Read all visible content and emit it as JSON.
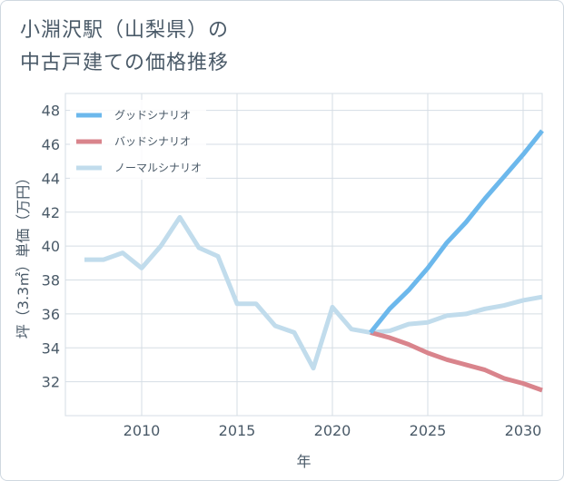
{
  "title": {
    "line1": "小淵沢駅（山梨県）の",
    "line2": "中古戸建ての価格推移"
  },
  "colors": {
    "good": "#6cb8ec",
    "bad": "#d9848c",
    "normal": "#c1dcec",
    "grid": "#d5dde4",
    "axis": "#4a5a68"
  },
  "chart_data": {
    "type": "line",
    "xlabel": "年",
    "ylabel": "坪（3.3㎡）単価（万円）",
    "xlim": [
      2006,
      2031
    ],
    "ylim": [
      30,
      49
    ],
    "xticks": [
      2010,
      2015,
      2020,
      2025,
      2030
    ],
    "yticks": [
      32,
      34,
      36,
      38,
      40,
      42,
      44,
      46,
      48
    ],
    "grid": true,
    "legend_position": "top-left",
    "series": [
      {
        "name": "グッドシナリオ",
        "color": "#6cb8ec",
        "x": [
          2022,
          2023,
          2024,
          2025,
          2026,
          2027,
          2028,
          2029,
          2030,
          2031
        ],
        "y": [
          34.9,
          36.3,
          37.4,
          38.7,
          40.2,
          41.4,
          42.8,
          44.1,
          45.4,
          46.8
        ]
      },
      {
        "name": "バッドシナリオ",
        "color": "#d9848c",
        "x": [
          2022,
          2023,
          2024,
          2025,
          2026,
          2027,
          2028,
          2029,
          2030,
          2031
        ],
        "y": [
          34.9,
          34.6,
          34.2,
          33.7,
          33.3,
          33.0,
          32.7,
          32.2,
          31.9,
          31.5
        ]
      },
      {
        "name": "ノーマルシナリオ",
        "color": "#c1dcec",
        "x": [
          2007,
          2008,
          2009,
          2010,
          2011,
          2012,
          2013,
          2014,
          2015,
          2016,
          2017,
          2018,
          2019,
          2020,
          2021,
          2022,
          2023,
          2024,
          2025,
          2026,
          2027,
          2028,
          2029,
          2030,
          2031
        ],
        "y": [
          39.2,
          39.2,
          39.6,
          38.7,
          40.0,
          41.7,
          39.9,
          39.4,
          36.6,
          36.6,
          35.3,
          34.9,
          32.8,
          36.4,
          35.1,
          34.9,
          35.0,
          35.4,
          35.5,
          35.9,
          36.0,
          36.3,
          36.5,
          36.8,
          37.0
        ]
      }
    ]
  }
}
